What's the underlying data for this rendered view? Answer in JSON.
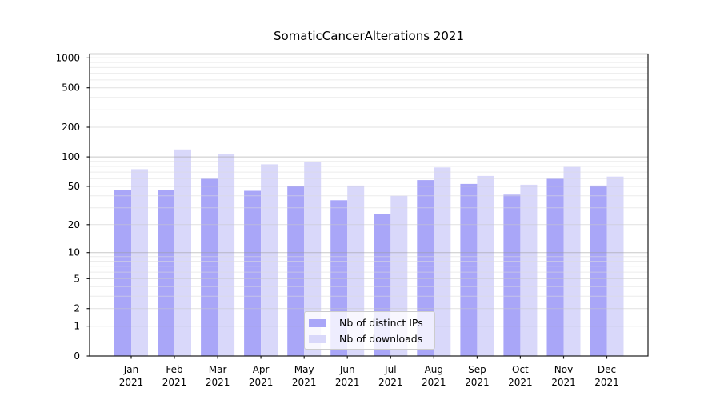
{
  "title": "SomaticCancerAlterations 2021",
  "legend": {
    "items": [
      {
        "label": "Nb of distinct IPs",
        "color": "#a9a6f8"
      },
      {
        "label": "Nb of downloads",
        "color": "#d9d8fa"
      }
    ]
  },
  "chart_data": {
    "type": "bar",
    "title": "SomaticCancerAlterations 2021",
    "xlabel": "",
    "ylabel": "",
    "scale": "log1p",
    "grid": "both",
    "legend_position": "lower center",
    "year_label": "2021",
    "categories": [
      "Jan",
      "Feb",
      "Mar",
      "Apr",
      "May",
      "Jun",
      "Jul",
      "Aug",
      "Sep",
      "Oct",
      "Nov",
      "Dec"
    ],
    "series": [
      {
        "name": "Nb of distinct IPs",
        "color": "#a9a6f8",
        "values": [
          46,
          46,
          60,
          45,
          50,
          36,
          26,
          58,
          53,
          41,
          60,
          51
        ]
      },
      {
        "name": "Nb of downloads",
        "color": "#d9d8fa",
        "values": [
          75,
          119,
          107,
          84,
          88,
          51,
          40,
          78,
          64,
          52,
          79,
          63
        ]
      }
    ],
    "yticks": [
      0,
      1,
      2,
      5,
      10,
      20,
      50,
      100,
      200,
      500,
      1000
    ],
    "ylim": [
      0,
      1095
    ],
    "grid_major_ticks": [
      1,
      10,
      100,
      1000
    ],
    "grid_minor_ticks": [
      3,
      4,
      6,
      7,
      8,
      9,
      30,
      40,
      60,
      70,
      80,
      90,
      300,
      400,
      600,
      700,
      800,
      900
    ]
  },
  "colors": {
    "frame": "#1a1a1a",
    "grid_major": "#9a9a9a",
    "grid_labeled": "#c9c9c9",
    "grid_minor": "#dcdcdc",
    "text": "#000000"
  }
}
